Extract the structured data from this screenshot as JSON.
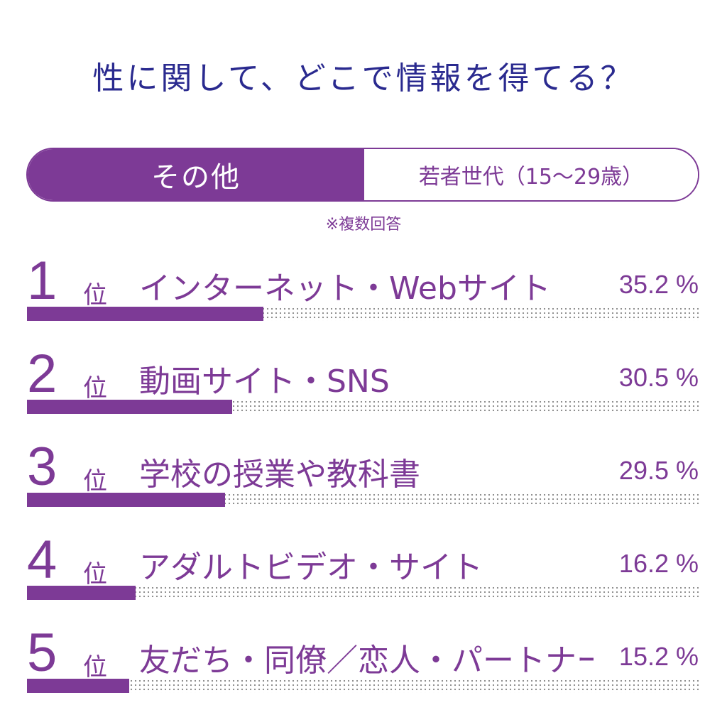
{
  "title": "性に関して、どこで情報を得てる？",
  "tabs": {
    "active": "その他",
    "inactive": "若者世代（15～29歳）"
  },
  "note": "※複数回答",
  "rank_suffix": "位",
  "unit": "%",
  "colors": {
    "accent": "#7d3a96",
    "title": "#2a2a8f"
  },
  "chart_data": {
    "type": "bar",
    "orientation": "horizontal",
    "categories": [
      "インターネット・Webサイト",
      "動画サイト・SNS",
      "学校の授業や教科書",
      "アダルトビデオ・サイト",
      "友だち・同僚／恋人・パートナー"
    ],
    "ranks": [
      "1",
      "2",
      "3",
      "4",
      "5"
    ],
    "values": [
      35.2,
      30.5,
      29.5,
      16.2,
      15.2
    ],
    "value_labels": [
      "35.2 %",
      "30.5 %",
      "29.5 %",
      "16.2 %",
      "15.2 %"
    ],
    "xlim": [
      0,
      100
    ]
  }
}
